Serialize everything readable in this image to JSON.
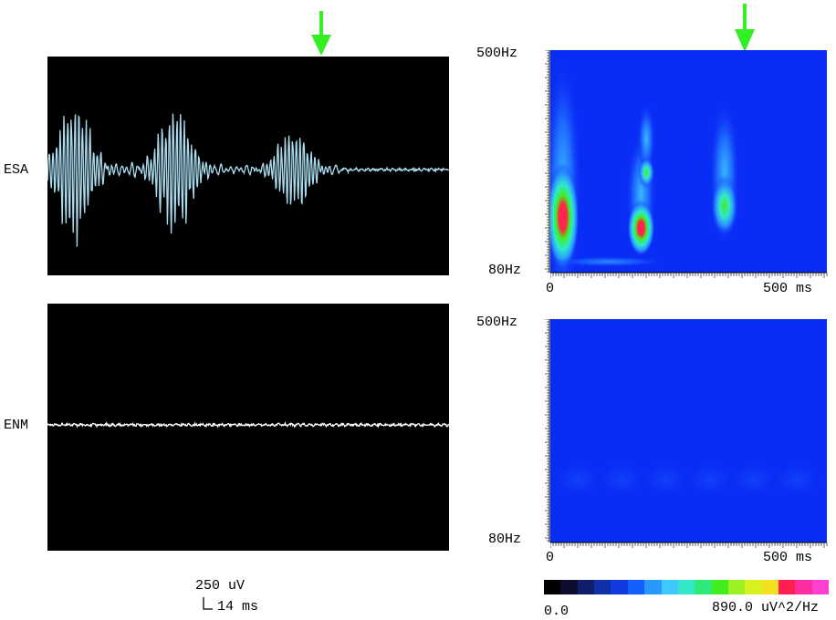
{
  "colors": {
    "esa_trace": "#a9dcef",
    "enm_trace": "#ffffff",
    "arrow": "#33ee22",
    "spectrogram_background": "#0a2df5"
  },
  "arrow_icon": "arrow-down-icon",
  "panels": {
    "esa": {
      "label": "ESA"
    },
    "enm": {
      "label": "ENM"
    }
  },
  "scale_bar": {
    "amplitude": "250 uV",
    "time": "14 ms"
  },
  "colorbar": {
    "min_label": "0.0",
    "max_label": "890.0 uV^2/Hz",
    "colors": [
      "#000000",
      "#0c0c2e",
      "#101d6a",
      "#1030a8",
      "#0f3ae0",
      "#1460ff",
      "#2898ff",
      "#3ec8ff",
      "#32e8c8",
      "#2ee87a",
      "#40ee20",
      "#9af020",
      "#d8f020",
      "#f0e020",
      "#ff1e50",
      "#ff2ea0",
      "#ff40d0"
    ]
  },
  "chart_data": [
    {
      "type": "line",
      "series": [
        {
          "name": "ESA",
          "description_only": false
        }
      ],
      "bursts": [
        {
          "t_ms": 30,
          "amp": 0.95
        },
        {
          "t_ms": 140,
          "amp": 0.9
        },
        {
          "t_ms": 270,
          "amp": 0.55
        }
      ],
      "marker_ms": 345
    },
    {
      "type": "line",
      "series": [
        {
          "name": "ENM"
        }
      ],
      "bursts": []
    },
    {
      "type": "heatmap",
      "y_labels": [
        "500Hz",
        "80Hz"
      ],
      "x_labels": [
        "0",
        "500 ms"
      ],
      "marker_ms": 395,
      "blobs": [
        {
          "t_ms": 10,
          "f": 0.25,
          "w": 0.06,
          "h": 0.35,
          "v": 0.95
        },
        {
          "t_ms": 160,
          "f": 0.2,
          "w": 0.05,
          "h": 0.18,
          "v": 0.9
        },
        {
          "t_ms": 170,
          "f": 0.45,
          "w": 0.03,
          "h": 0.1,
          "v": 0.6
        },
        {
          "t_ms": 320,
          "f": 0.3,
          "w": 0.05,
          "h": 0.2,
          "v": 0.6
        }
      ]
    },
    {
      "type": "heatmap",
      "y_labels": [
        "500Hz",
        "80Hz"
      ],
      "x_labels": [
        "0",
        "500 ms"
      ],
      "blobs": []
    }
  ]
}
